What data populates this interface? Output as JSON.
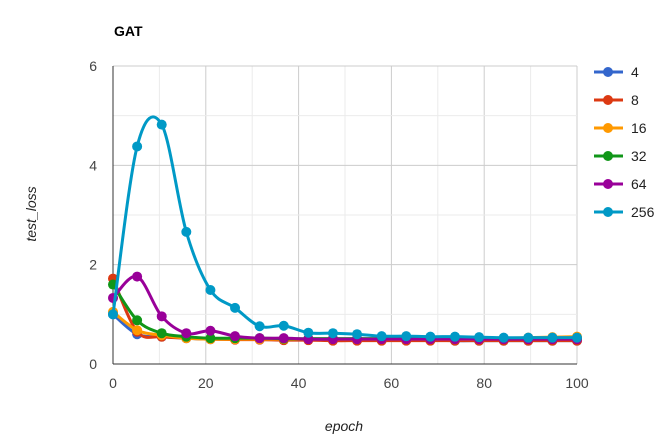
{
  "chart_data": {
    "type": "line",
    "title": "GAT",
    "xlabel": "epoch",
    "ylabel": "test_loss",
    "xlim": [
      0,
      100
    ],
    "ylim": [
      0,
      6
    ],
    "xticks": [
      0,
      20,
      40,
      60,
      80,
      100
    ],
    "yticks": [
      0,
      2,
      4,
      6
    ],
    "grid": true,
    "legend_position": "right",
    "x": [
      0,
      5.2,
      10.5,
      15.8,
      21,
      26.3,
      31.6,
      36.8,
      42.1,
      47.4,
      52.6,
      57.9,
      63.2,
      68.4,
      73.7,
      78.9,
      84.2,
      89.5,
      94.7,
      100
    ],
    "series": [
      {
        "name": "4",
        "color": "#3366cc",
        "values": [
          1.0,
          0.6,
          0.55,
          0.52,
          0.5,
          0.5,
          0.5,
          0.49,
          0.49,
          0.49,
          0.48,
          0.48,
          0.48,
          0.48,
          0.47,
          0.47,
          0.47,
          0.47,
          0.47,
          0.47
        ]
      },
      {
        "name": "8",
        "color": "#dc3912",
        "values": [
          1.72,
          0.65,
          0.55,
          0.52,
          0.5,
          0.49,
          0.49,
          0.48,
          0.48,
          0.47,
          0.47,
          0.47,
          0.47,
          0.47,
          0.47,
          0.47,
          0.47,
          0.47,
          0.47,
          0.47
        ]
      },
      {
        "name": "16",
        "color": "#ff9900",
        "values": [
          1.05,
          0.68,
          0.58,
          0.52,
          0.5,
          0.5,
          0.5,
          0.5,
          0.5,
          0.5,
          0.5,
          0.5,
          0.5,
          0.5,
          0.5,
          0.5,
          0.52,
          0.53,
          0.54,
          0.55
        ]
      },
      {
        "name": "32",
        "color": "#109618",
        "values": [
          1.6,
          0.88,
          0.62,
          0.55,
          0.52,
          0.52,
          0.52,
          0.51,
          0.51,
          0.51,
          0.51,
          0.51,
          0.51,
          0.51,
          0.51,
          0.51,
          0.51,
          0.51,
          0.51,
          0.52
        ]
      },
      {
        "name": "64",
        "color": "#990099",
        "values": [
          1.33,
          1.76,
          0.96,
          0.62,
          0.67,
          0.56,
          0.52,
          0.52,
          0.5,
          0.5,
          0.5,
          0.5,
          0.5,
          0.5,
          0.5,
          0.5,
          0.5,
          0.5,
          0.5,
          0.5
        ]
      },
      {
        "name": "256",
        "color": "#0099c6",
        "values": [
          1.0,
          4.38,
          4.82,
          2.66,
          1.49,
          1.13,
          0.76,
          0.77,
          0.63,
          0.62,
          0.6,
          0.56,
          0.56,
          0.55,
          0.55,
          0.54,
          0.53,
          0.53,
          0.53,
          0.53
        ]
      }
    ]
  }
}
